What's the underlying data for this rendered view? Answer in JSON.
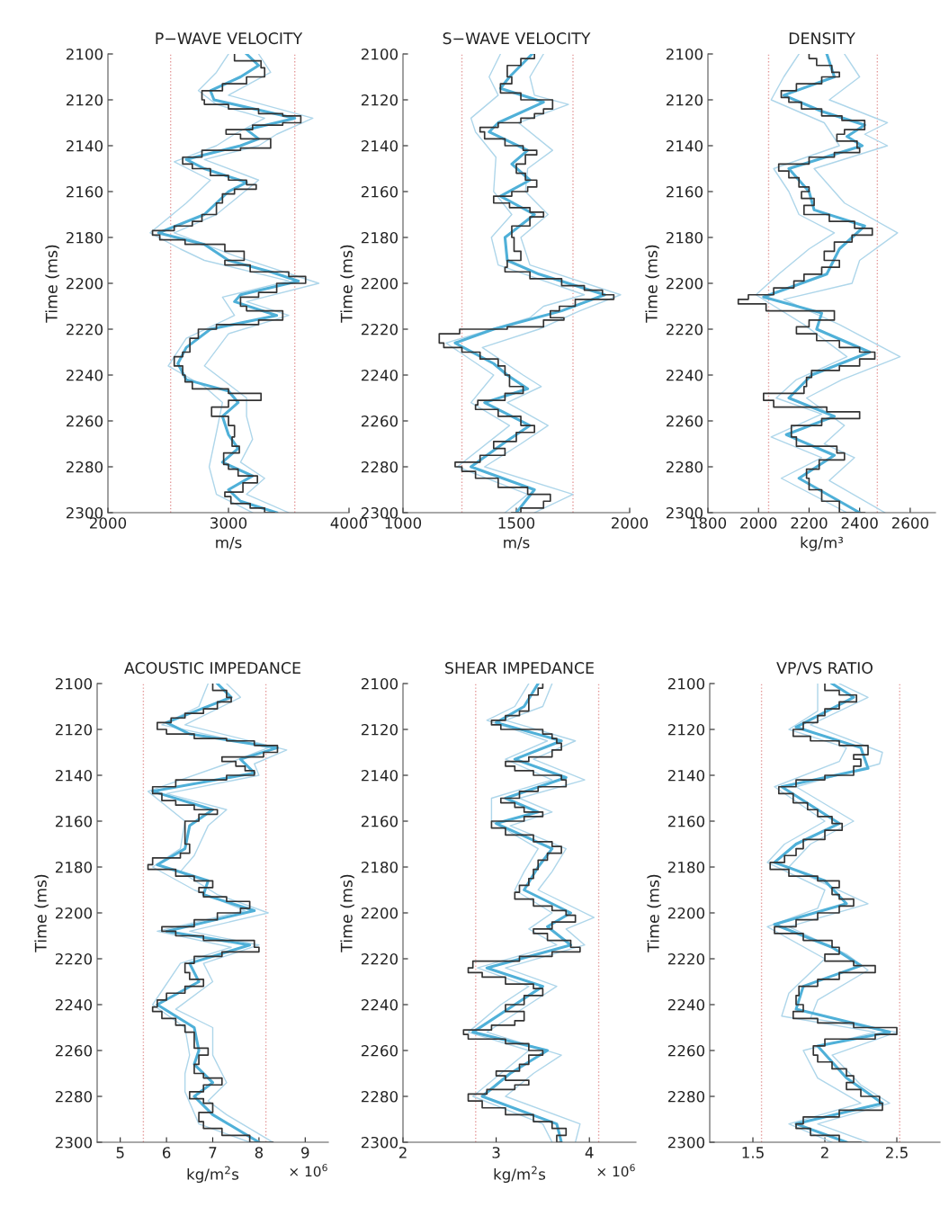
{
  "chart_data": [
    {
      "type": "line",
      "orientation": "horizontal",
      "title": "P−WAVE VELOCITY",
      "xlabel": "m/s",
      "ylabel": "Time (ms)",
      "xlim": [
        2000,
        4000
      ],
      "xticks": [
        2000,
        3000,
        4000
      ],
      "ylim": [
        2300,
        2100
      ],
      "yticks": [
        2100,
        2120,
        2140,
        2160,
        2180,
        2200,
        2220,
        2240,
        2260,
        2280,
        2300
      ],
      "ref_lines": [
        {
          "axis": "x",
          "value": 2520,
          "color": "#e49a9a",
          "line_style": "dotted"
        },
        {
          "axis": "x",
          "value": 3550,
          "color": "#e49a9a",
          "line_style": "dotted"
        }
      ],
      "series": [
        {
          "type": "line",
          "color": "#aed6ea",
          "x": [
            2100,
            2108,
            2116,
            2122,
            2128,
            2135,
            2140,
            2147,
            2155,
            2165,
            2178,
            2185,
            2190,
            2199,
            2206,
            2214,
            2224,
            2236,
            2245,
            2252,
            2265,
            2280,
            2292,
            2300
          ],
          "values": [
            3000,
            2900,
            2750,
            2900,
            3300,
            3050,
            2900,
            2550,
            2850,
            2650,
            2350,
            2600,
            2800,
            3500,
            2950,
            3050,
            2650,
            2500,
            2800,
            2950,
            2900,
            2840,
            2900,
            3200
          ]
        },
        {
          "type": "line",
          "color": "#aed6ea",
          "x": [
            2100,
            2108,
            2118,
            2128,
            2135,
            2140,
            2146,
            2155,
            2170,
            2178,
            2188,
            2200,
            2208,
            2214,
            2222,
            2236,
            2250,
            2258,
            2268,
            2278,
            2285,
            2292,
            2300
          ],
          "values": [
            3250,
            3350,
            3000,
            3700,
            3400,
            3250,
            2800,
            3250,
            2900,
            2550,
            3050,
            3750,
            3150,
            3500,
            3000,
            2800,
            3150,
            3150,
            3200,
            3100,
            3300,
            3150,
            3500
          ]
        },
        {
          "type": "line",
          "color": "#4fb0d8",
          "x": [
            2100,
            2105,
            2110,
            2116,
            2120,
            2125,
            2128,
            2133,
            2137,
            2140,
            2146,
            2150,
            2156,
            2160,
            2170,
            2178,
            2183,
            2190,
            2195,
            2199,
            2205,
            2208,
            2214,
            2220,
            2228,
            2235,
            2242,
            2247,
            2252,
            2258,
            2266,
            2272,
            2278,
            2284,
            2290,
            2295,
            2300
          ],
          "values": [
            3150,
            3250,
            3100,
            2850,
            2880,
            3300,
            3550,
            3150,
            3250,
            3100,
            2650,
            2800,
            3150,
            3000,
            2800,
            2420,
            2800,
            3000,
            3350,
            3580,
            3100,
            3050,
            3400,
            2850,
            2650,
            2580,
            2650,
            3000,
            3080,
            2950,
            3000,
            3080,
            2950,
            3200,
            3000,
            3100,
            3400
          ]
        },
        {
          "type": "step",
          "color": "#333333",
          "x": [
            2100,
            2103,
            2106,
            2110,
            2113,
            2116,
            2120,
            2122,
            2124,
            2126,
            2127,
            2130,
            2131,
            2133,
            2135,
            2137,
            2141,
            2142,
            2145,
            2148,
            2150,
            2153,
            2155,
            2157,
            2159,
            2161,
            2165,
            2170,
            2173,
            2175,
            2177,
            2179,
            2181,
            2183,
            2186,
            2190,
            2192,
            2195,
            2197,
            2200,
            2204,
            2206,
            2210,
            2212,
            2216,
            2218,
            2220,
            2224,
            2230,
            2232,
            2236,
            2240,
            2243,
            2246,
            2248,
            2251,
            2254,
            2258,
            2262,
            2267,
            2271,
            2274,
            2279,
            2281,
            2284,
            2287,
            2291,
            2293,
            2296,
            2298,
            2300
          ],
          "values": [
            3050,
            3270,
            3300,
            3150,
            2950,
            2780,
            2800,
            3000,
            3250,
            3450,
            3600,
            3450,
            3200,
            2980,
            3100,
            3350,
            3100,
            2780,
            2620,
            2700,
            2850,
            3000,
            3150,
            3230,
            3050,
            2950,
            2900,
            2780,
            2700,
            2550,
            2370,
            2430,
            2640,
            2970,
            3130,
            2970,
            3180,
            3500,
            3640,
            3400,
            3250,
            3100,
            3150,
            3450,
            3250,
            2900,
            2750,
            2680,
            2620,
            2550,
            2620,
            2640,
            2700,
            3000,
            3270,
            3000,
            2860,
            3000,
            3050,
            3030,
            3090,
            2960,
            3000,
            3080,
            3240,
            3120,
            2970,
            3020,
            3180,
            3300,
            3380
          ]
        }
      ]
    },
    {
      "type": "line",
      "orientation": "horizontal",
      "title": "S−WAVE VELOCITY",
      "xlabel": "m/s",
      "ylabel": "Time (ms)",
      "xlim": [
        1000,
        2000
      ],
      "xticks": [
        1000,
        1500,
        2000
      ],
      "ylim": [
        2300,
        2100
      ],
      "yticks": [
        2100,
        2120,
        2140,
        2160,
        2180,
        2200,
        2220,
        2240,
        2260,
        2280,
        2300
      ],
      "ref_lines": [
        {
          "axis": "x",
          "value": 1260,
          "color": "#e49a9a",
          "line_style": "dotted"
        },
        {
          "axis": "x",
          "value": 1750,
          "color": "#e49a9a",
          "line_style": "dotted"
        }
      ],
      "series": [
        {
          "type": "line",
          "color": "#aed6ea",
          "x": [
            2100,
            2110,
            2118,
            2128,
            2134,
            2145,
            2160,
            2170,
            2180,
            2192,
            2205,
            2210,
            2215,
            2226,
            2240,
            2252,
            2262,
            2280,
            2292,
            2300
          ],
          "values": [
            1430,
            1380,
            1420,
            1300,
            1320,
            1410,
            1400,
            1480,
            1390,
            1420,
            1800,
            1620,
            1560,
            1190,
            1400,
            1300,
            1470,
            1240,
            1550,
            1450
          ]
        },
        {
          "type": "line",
          "color": "#aed6ea",
          "x": [
            2100,
            2110,
            2118,
            2122,
            2130,
            2142,
            2150,
            2160,
            2170,
            2180,
            2192,
            2205,
            2212,
            2220,
            2228,
            2240,
            2245,
            2252,
            2262,
            2270,
            2280,
            2292,
            2300
          ],
          "values": [
            1620,
            1560,
            1580,
            1730,
            1510,
            1660,
            1550,
            1540,
            1640,
            1520,
            1560,
            1960,
            1780,
            1600,
            1350,
            1530,
            1610,
            1460,
            1640,
            1520,
            1360,
            1750,
            1580
          ]
        },
        {
          "type": "line",
          "color": "#4fb0d8",
          "x": [
            2100,
            2110,
            2115,
            2121,
            2130,
            2134,
            2142,
            2148,
            2155,
            2162,
            2170,
            2180,
            2190,
            2196,
            2205,
            2212,
            2220,
            2226,
            2235,
            2240,
            2246,
            2252,
            2262,
            2270,
            2280,
            2290,
            2300
          ],
          "values": [
            1570,
            1470,
            1430,
            1620,
            1420,
            1380,
            1550,
            1480,
            1560,
            1430,
            1580,
            1450,
            1460,
            1600,
            1890,
            1700,
            1400,
            1230,
            1400,
            1460,
            1550,
            1360,
            1560,
            1440,
            1300,
            1580,
            1500
          ]
        },
        {
          "type": "step",
          "color": "#333333",
          "x": [
            2100,
            2102,
            2105,
            2110,
            2113,
            2117,
            2120,
            2124,
            2126,
            2128,
            2130,
            2132,
            2134,
            2137,
            2140,
            2142,
            2144,
            2148,
            2152,
            2155,
            2158,
            2160,
            2162,
            2165,
            2167,
            2169,
            2171,
            2175,
            2180,
            2186,
            2190,
            2193,
            2195,
            2198,
            2201,
            2203,
            2205,
            2207,
            2210,
            2212,
            2215,
            2216,
            2219,
            2220,
            2222,
            2226,
            2228,
            2230,
            2233,
            2236,
            2240,
            2245,
            2248,
            2251,
            2253,
            2255,
            2258,
            2262,
            2265,
            2269,
            2272,
            2275,
            2278,
            2280,
            2282,
            2285,
            2289,
            2292,
            2295,
            2298,
            2300
          ],
          "values": [
            1580,
            1520,
            1460,
            1480,
            1430,
            1520,
            1660,
            1620,
            1580,
            1520,
            1420,
            1340,
            1360,
            1450,
            1530,
            1590,
            1540,
            1500,
            1540,
            1590,
            1550,
            1480,
            1400,
            1470,
            1560,
            1620,
            1560,
            1480,
            1490,
            1520,
            1460,
            1450,
            1560,
            1700,
            1800,
            1880,
            1930,
            1760,
            1690,
            1650,
            1710,
            1620,
            1460,
            1250,
            1160,
            1180,
            1260,
            1340,
            1420,
            1450,
            1470,
            1530,
            1450,
            1330,
            1320,
            1420,
            1520,
            1580,
            1500,
            1400,
            1450,
            1340,
            1230,
            1260,
            1320,
            1420,
            1550,
            1650,
            1620,
            1520,
            1480
          ]
        }
      ]
    },
    {
      "type": "line",
      "orientation": "horizontal",
      "title": "DENSITY",
      "xlabel": "kg/m³",
      "ylabel": "Time (ms)",
      "xlim": [
        1800,
        2700
      ],
      "xticks": [
        1800,
        2000,
        2200,
        2400,
        2600
      ],
      "ylim": [
        2300,
        2100
      ],
      "yticks": [
        2100,
        2120,
        2140,
        2160,
        2180,
        2200,
        2220,
        2240,
        2260,
        2280,
        2300
      ],
      "ref_lines": [
        {
          "axis": "x",
          "value": 2040,
          "color": "#e49a9a",
          "line_style": "dotted"
        },
        {
          "axis": "x",
          "value": 2470,
          "color": "#e49a9a",
          "line_style": "dotted"
        }
      ],
      "series": [
        {
          "type": "line",
          "color": "#aed6ea",
          "x": [
            2100,
            2110,
            2120,
            2130,
            2140,
            2150,
            2160,
            2170,
            2178,
            2185,
            2196,
            2205,
            2218,
            2232,
            2242,
            2250,
            2257,
            2267,
            2276,
            2285,
            2300
          ],
          "values": [
            2160,
            2100,
            2050,
            2260,
            2320,
            2060,
            2120,
            2160,
            2300,
            2200,
            2080,
            1990,
            2180,
            2350,
            2150,
            2070,
            2250,
            2050,
            2250,
            2090,
            2350
          ]
        },
        {
          "type": "line",
          "color": "#aed6ea",
          "x": [
            2100,
            2110,
            2120,
            2130,
            2135,
            2140,
            2150,
            2165,
            2178,
            2190,
            2200,
            2207,
            2218,
            2232,
            2242,
            2250,
            2262,
            2270,
            2276,
            2286,
            2300
          ],
          "values": [
            2340,
            2400,
            2280,
            2510,
            2420,
            2510,
            2220,
            2340,
            2550,
            2400,
            2370,
            2100,
            2320,
            2560,
            2330,
            2190,
            2340,
            2260,
            2380,
            2280,
            2500
          ]
        },
        {
          "type": "line",
          "color": "#4fb0d8",
          "x": [
            2100,
            2110,
            2118,
            2125,
            2131,
            2136,
            2140,
            2150,
            2160,
            2168,
            2175,
            2185,
            2196,
            2206,
            2213,
            2220,
            2230,
            2240,
            2250,
            2258,
            2266,
            2275,
            2285,
            2300
          ],
          "values": [
            2270,
            2300,
            2100,
            2250,
            2420,
            2350,
            2410,
            2120,
            2200,
            2220,
            2420,
            2320,
            2270,
            2020,
            2250,
            2230,
            2440,
            2210,
            2120,
            2300,
            2110,
            2300,
            2160,
            2400
          ]
        },
        {
          "type": "step",
          "color": "#333333",
          "x": [
            2100,
            2102,
            2105,
            2108,
            2110,
            2113,
            2116,
            2119,
            2121,
            2124,
            2127,
            2129,
            2133,
            2135,
            2138,
            2141,
            2143,
            2145,
            2148,
            2151,
            2154,
            2158,
            2160,
            2163,
            2166,
            2170,
            2173,
            2176,
            2179,
            2182,
            2186,
            2190,
            2193,
            2196,
            2199,
            2202,
            2205,
            2207,
            2209,
            2212,
            2216,
            2219,
            2222,
            2225,
            2228,
            2230,
            2233,
            2236,
            2238,
            2241,
            2245,
            2248,
            2251,
            2254,
            2256,
            2259,
            2262,
            2267,
            2271,
            2274,
            2277,
            2281,
            2285,
            2290,
            2295,
            2300
          ],
          "values": [
            2200,
            2230,
            2290,
            2320,
            2250,
            2150,
            2090,
            2120,
            2170,
            2250,
            2330,
            2420,
            2340,
            2310,
            2390,
            2400,
            2300,
            2200,
            2080,
            2120,
            2160,
            2200,
            2170,
            2220,
            2180,
            2280,
            2380,
            2450,
            2370,
            2300,
            2260,
            2320,
            2250,
            2180,
            2140,
            2060,
            1960,
            1920,
            2030,
            2300,
            2200,
            2150,
            2230,
            2320,
            2400,
            2460,
            2400,
            2320,
            2210,
            2190,
            2180,
            2020,
            2060,
            2270,
            2400,
            2250,
            2130,
            2150,
            2310,
            2340,
            2240,
            2190,
            2200,
            2250,
            2320,
            2420
          ]
        }
      ]
    },
    {
      "type": "line",
      "orientation": "horizontal",
      "title": "ACOUSTIC IMPEDANCE",
      "xlabel": "kg/m$^{2}$s",
      "ylabel": "Time (ms)",
      "annotations": [
        "× 10$^{6}$"
      ],
      "xlim": [
        4.5,
        9.5
      ],
      "xticks": [
        5,
        6,
        7,
        8,
        9
      ],
      "ylim": [
        2300,
        2100
      ],
      "yticks": [
        2100,
        2120,
        2140,
        2160,
        2180,
        2200,
        2220,
        2240,
        2260,
        2280,
        2300
      ],
      "ref_lines": [
        {
          "axis": "x",
          "value": 5.5,
          "color": "#e49a9a",
          "line_style": "dotted"
        },
        {
          "axis": "x",
          "value": 8.15,
          "color": "#e49a9a",
          "line_style": "dotted"
        }
      ],
      "series": [
        {
          "type": "line",
          "color": "#aed6ea",
          "x": [
            2100,
            2110,
            2118,
            2128,
            2135,
            2147,
            2160,
            2172,
            2180,
            2190,
            2199,
            2208,
            2215,
            2222,
            2240,
            2250,
            2262,
            2270,
            2278,
            2292,
            2300
          ],
          "values": [
            6.9,
            6.7,
            5.9,
            8.2,
            7.3,
            5.6,
            6.4,
            6.3,
            5.7,
            6.6,
            7.7,
            5.8,
            7.4,
            6.3,
            5.7,
            6.4,
            6.5,
            6.4,
            6.4,
            6.7,
            7.8
          ]
        },
        {
          "type": "line",
          "color": "#aed6ea",
          "x": [
            2100,
            2106,
            2118,
            2129,
            2135,
            2140,
            2148,
            2155,
            2162,
            2175,
            2182,
            2192,
            2200,
            2208,
            2214,
            2222,
            2230,
            2242,
            2250,
            2262,
            2274,
            2282,
            2288,
            2300
          ],
          "values": [
            7.3,
            7.6,
            6.4,
            8.6,
            7.9,
            8.0,
            6.0,
            7.3,
            6.9,
            6.6,
            6.3,
            7.1,
            8.2,
            6.5,
            8.0,
            6.8,
            7.0,
            6.2,
            7.0,
            7.0,
            7.3,
            6.9,
            7.3,
            8.3
          ]
        },
        {
          "type": "line",
          "color": "#4fb0d8",
          "x": [
            2100,
            2106,
            2117,
            2122,
            2128,
            2133,
            2139,
            2147,
            2155,
            2162,
            2172,
            2179,
            2186,
            2192,
            2199,
            2208,
            2214,
            2222,
            2230,
            2240,
            2250,
            2260,
            2266,
            2274,
            2280,
            2288,
            2300
          ],
          "values": [
            7.1,
            7.4,
            6.0,
            6.5,
            8.4,
            7.6,
            7.9,
            5.7,
            7.0,
            6.5,
            6.4,
            5.8,
            6.9,
            6.8,
            7.9,
            6.0,
            7.8,
            6.5,
            6.7,
            5.8,
            6.6,
            6.7,
            6.6,
            7.0,
            6.6,
            7.0,
            8.0
          ]
        },
        {
          "type": "step",
          "color": "#333333",
          "x": [
            2100,
            2103,
            2106,
            2108,
            2111,
            2113,
            2115,
            2117,
            2120,
            2122,
            2124,
            2125,
            2127,
            2130,
            2132,
            2134,
            2136,
            2138,
            2140,
            2142,
            2145,
            2148,
            2151,
            2153,
            2155,
            2157,
            2160,
            2165,
            2170,
            2174,
            2176,
            2179,
            2181,
            2184,
            2186,
            2189,
            2191,
            2193,
            2195,
            2198,
            2200,
            2203,
            2206,
            2208,
            2210,
            2212,
            2215,
            2217,
            2219,
            2222,
            2226,
            2229,
            2232,
            2235,
            2238,
            2241,
            2243,
            2246,
            2249,
            2252,
            2256,
            2259,
            2262,
            2266,
            2270,
            2272,
            2275,
            2278,
            2281,
            2283,
            2287,
            2291,
            2294,
            2297,
            2300
          ],
          "values": [
            7.0,
            7.3,
            7.4,
            7.1,
            6.8,
            6.4,
            6.1,
            5.8,
            6.0,
            6.6,
            7.3,
            7.9,
            8.4,
            8.1,
            7.2,
            7.5,
            7.7,
            7.9,
            7.3,
            6.2,
            5.7,
            5.9,
            6.2,
            6.6,
            7.1,
            6.7,
            6.4,
            6.4,
            6.5,
            6.3,
            5.7,
            5.6,
            6.2,
            6.6,
            7.0,
            6.7,
            6.8,
            7.3,
            7.8,
            7.6,
            7.1,
            6.6,
            5.9,
            6.2,
            6.8,
            7.9,
            8.0,
            7.2,
            6.6,
            6.4,
            6.5,
            6.8,
            6.4,
            6.0,
            5.8,
            5.7,
            5.9,
            6.2,
            6.4,
            6.6,
            6.6,
            6.9,
            6.7,
            6.6,
            6.8,
            7.2,
            6.8,
            6.5,
            6.8,
            7.0,
            6.7,
            6.8,
            7.2,
            7.8,
            8.3
          ]
        }
      ]
    },
    {
      "type": "line",
      "orientation": "horizontal",
      "title": "SHEAR IMPEDANCE",
      "xlabel": "kg/m$^{2}$s",
      "ylabel": "Time (ms)",
      "annotations": [
        "× 10$^{6}$"
      ],
      "xlim": [
        2,
        4.5
      ],
      "xticks": [
        2,
        3,
        4
      ],
      "ylim": [
        2300,
        2100
      ],
      "yticks": [
        2100,
        2120,
        2140,
        2160,
        2180,
        2200,
        2220,
        2240,
        2260,
        2280,
        2300
      ],
      "ref_lines": [
        {
          "axis": "x",
          "value": 2.78,
          "color": "#e49a9a",
          "line_style": "dotted"
        },
        {
          "axis": "x",
          "value": 4.1,
          "color": "#e49a9a",
          "line_style": "dotted"
        }
      ],
      "series": [
        {
          "type": "line",
          "color": "#aed6ea",
          "x": [
            2100,
            2110,
            2116,
            2125,
            2133,
            2142,
            2150,
            2160,
            2172,
            2182,
            2190,
            2200,
            2207,
            2214,
            2224,
            2232,
            2240,
            2252,
            2260,
            2270,
            2280,
            2292,
            2300
          ],
          "values": [
            3.35,
            3.2,
            2.9,
            3.55,
            3.1,
            3.6,
            2.95,
            2.95,
            3.45,
            3.3,
            3.2,
            3.6,
            3.35,
            3.65,
            2.8,
            3.35,
            3.05,
            2.7,
            3.35,
            3.05,
            2.75,
            3.5,
            3.6
          ]
        },
        {
          "type": "line",
          "color": "#aed6ea",
          "x": [
            2100,
            2110,
            2116,
            2125,
            2133,
            2142,
            2150,
            2156,
            2162,
            2172,
            2182,
            2190,
            2202,
            2207,
            2214,
            2224,
            2232,
            2240,
            2252,
            2262,
            2270,
            2280,
            2292,
            2300
          ],
          "values": [
            3.6,
            3.5,
            3.1,
            3.85,
            3.4,
            3.95,
            3.25,
            3.6,
            3.15,
            3.75,
            3.6,
            3.45,
            4.05,
            3.75,
            3.95,
            3.1,
            3.65,
            3.35,
            2.9,
            3.7,
            3.4,
            3.1,
            3.9,
            3.85
          ]
        },
        {
          "type": "line",
          "color": "#4fb0d8",
          "x": [
            2100,
            2110,
            2117,
            2125,
            2133,
            2141,
            2150,
            2156,
            2161,
            2172,
            2180,
            2190,
            2200,
            2206,
            2214,
            2224,
            2232,
            2240,
            2252,
            2260,
            2270,
            2280,
            2292,
            2300
          ],
          "values": [
            3.45,
            3.3,
            3.0,
            3.7,
            3.2,
            3.75,
            3.1,
            3.45,
            3.0,
            3.6,
            3.45,
            3.3,
            3.8,
            3.55,
            3.8,
            2.9,
            3.5,
            3.2,
            2.75,
            3.55,
            3.15,
            2.85,
            3.65,
            3.7
          ]
        },
        {
          "type": "step",
          "color": "#333333",
          "x": [
            2100,
            2102,
            2105,
            2109,
            2112,
            2114,
            2116,
            2118,
            2120,
            2122,
            2124,
            2126,
            2129,
            2132,
            2134,
            2136,
            2138,
            2140,
            2142,
            2145,
            2147,
            2150,
            2152,
            2154,
            2156,
            2158,
            2160,
            2163,
            2166,
            2169,
            2171,
            2174,
            2177,
            2181,
            2185,
            2188,
            2191,
            2194,
            2197,
            2199,
            2201,
            2204,
            2207,
            2209,
            2212,
            2215,
            2217,
            2219,
            2221,
            2224,
            2226,
            2228,
            2231,
            2233,
            2236,
            2240,
            2243,
            2247,
            2249,
            2251,
            2253,
            2255,
            2257,
            2260,
            2262,
            2266,
            2269,
            2271,
            2273,
            2275,
            2277,
            2279,
            2282,
            2285,
            2288,
            2291,
            2294,
            2297,
            2300
          ],
          "values": [
            3.5,
            3.45,
            3.35,
            3.35,
            3.25,
            3.1,
            2.95,
            3.05,
            3.5,
            3.6,
            3.65,
            3.7,
            3.6,
            3.35,
            3.1,
            3.2,
            3.4,
            3.7,
            3.75,
            3.45,
            3.25,
            3.05,
            3.2,
            3.3,
            3.5,
            3.3,
            2.95,
            3.1,
            3.4,
            3.6,
            3.7,
            3.55,
            3.45,
            3.4,
            3.35,
            3.25,
            3.2,
            3.4,
            3.6,
            3.75,
            3.85,
            3.6,
            3.4,
            3.55,
            3.8,
            3.9,
            3.6,
            3.25,
            2.75,
            2.7,
            2.85,
            3.1,
            3.4,
            3.5,
            3.3,
            3.1,
            3.3,
            3.2,
            2.95,
            2.65,
            2.7,
            3.1,
            3.35,
            3.5,
            3.35,
            3.25,
            3.0,
            3.1,
            3.35,
            3.2,
            2.9,
            2.7,
            2.85,
            3.1,
            3.4,
            3.6,
            3.75,
            3.65,
            3.7
          ]
        }
      ]
    },
    {
      "type": "line",
      "orientation": "horizontal",
      "title": "VP/VS RATIO",
      "ylabel": "Time (ms)",
      "xlim": [
        1.2,
        2.8
      ],
      "xticks": [
        1.5,
        2,
        2.5
      ],
      "ylim": [
        2300,
        2100
      ],
      "yticks": [
        2100,
        2120,
        2140,
        2160,
        2180,
        2200,
        2220,
        2240,
        2260,
        2280,
        2300
      ],
      "ref_lines": [
        {
          "axis": "x",
          "value": 1.56,
          "color": "#e49a9a",
          "line_style": "dotted"
        },
        {
          "axis": "x",
          "value": 2.52,
          "color": "#e49a9a",
          "line_style": "dotted"
        }
      ],
      "series": [
        {
          "type": "line",
          "color": "#aed6ea",
          "x": [
            2100,
            2112,
            2120,
            2128,
            2134,
            2145,
            2160,
            2170,
            2178,
            2190,
            2198,
            2206,
            2220,
            2235,
            2245,
            2252,
            2260,
            2272,
            2283,
            2292,
            2300
          ],
          "values": [
            1.95,
            1.95,
            1.75,
            2.15,
            2.1,
            1.65,
            2.0,
            1.72,
            1.6,
            2.0,
            1.95,
            1.6,
            2.0,
            1.75,
            1.7,
            2.35,
            1.85,
            1.95,
            2.25,
            1.75,
            2.05
          ]
        },
        {
          "type": "line",
          "color": "#aed6ea",
          "x": [
            2100,
            2106,
            2118,
            2130,
            2135,
            2145,
            2160,
            2170,
            2180,
            2196,
            2206,
            2218,
            2225,
            2238,
            2246,
            2252,
            2262,
            2275,
            2283,
            2292,
            2300
          ],
          "values": [
            2.1,
            2.3,
            1.9,
            2.4,
            2.38,
            1.8,
            2.2,
            1.9,
            1.75,
            2.3,
            1.75,
            2.15,
            2.3,
            1.95,
            1.9,
            2.5,
            2.05,
            2.25,
            2.45,
            1.95,
            2.3
          ]
        },
        {
          "type": "line",
          "color": "#4fb0d8",
          "x": [
            2100,
            2106,
            2119,
            2128,
            2137,
            2145,
            2155,
            2161,
            2170,
            2178,
            2186,
            2196,
            2205,
            2215,
            2223,
            2232,
            2242,
            2252,
            2258,
            2265,
            2272,
            2283,
            2292,
            2300
          ],
          "values": [
            2.05,
            2.2,
            1.8,
            2.25,
            2.3,
            1.7,
            1.95,
            2.1,
            1.8,
            1.65,
            2.0,
            2.15,
            1.65,
            2.05,
            2.25,
            1.85,
            1.8,
            2.45,
            1.95,
            2.05,
            2.15,
            2.4,
            1.8,
            2.15
          ]
        },
        {
          "type": "step",
          "color": "#333333",
          "x": [
            2100,
            2103,
            2105,
            2108,
            2111,
            2114,
            2117,
            2120,
            2123,
            2125,
            2127,
            2131,
            2133,
            2136,
            2140,
            2142,
            2145,
            2148,
            2152,
            2155,
            2158,
            2161,
            2164,
            2168,
            2172,
            2175,
            2178,
            2181,
            2184,
            2186,
            2189,
            2192,
            2194,
            2197,
            2200,
            2203,
            2206,
            2209,
            2212,
            2215,
            2218,
            2221,
            2223,
            2226,
            2229,
            2232,
            2236,
            2240,
            2243,
            2246,
            2248,
            2250,
            2253,
            2255,
            2258,
            2262,
            2265,
            2268,
            2271,
            2274,
            2277,
            2280,
            2283,
            2286,
            2289,
            2292,
            2294,
            2297,
            2300
          ],
          "values": [
            2.0,
            2.1,
            2.22,
            2.1,
            2.0,
            1.95,
            1.85,
            1.78,
            1.9,
            2.1,
            2.3,
            2.2,
            2.25,
            2.2,
            2.0,
            1.8,
            1.68,
            1.78,
            1.88,
            1.95,
            2.05,
            2.12,
            2.0,
            1.85,
            1.8,
            1.72,
            1.62,
            1.75,
            1.95,
            2.1,
            2.05,
            2.1,
            2.2,
            2.1,
            1.95,
            1.8,
            1.65,
            1.85,
            2.05,
            2.1,
            2.0,
            2.2,
            2.35,
            2.1,
            1.95,
            1.82,
            1.8,
            1.85,
            1.78,
            1.95,
            2.2,
            2.5,
            2.35,
            2.0,
            1.92,
            1.95,
            2.05,
            2.15,
            2.2,
            2.15,
            2.25,
            2.38,
            2.4,
            2.1,
            1.85,
            1.8,
            1.9,
            2.1,
            2.25
          ]
        }
      ]
    }
  ]
}
